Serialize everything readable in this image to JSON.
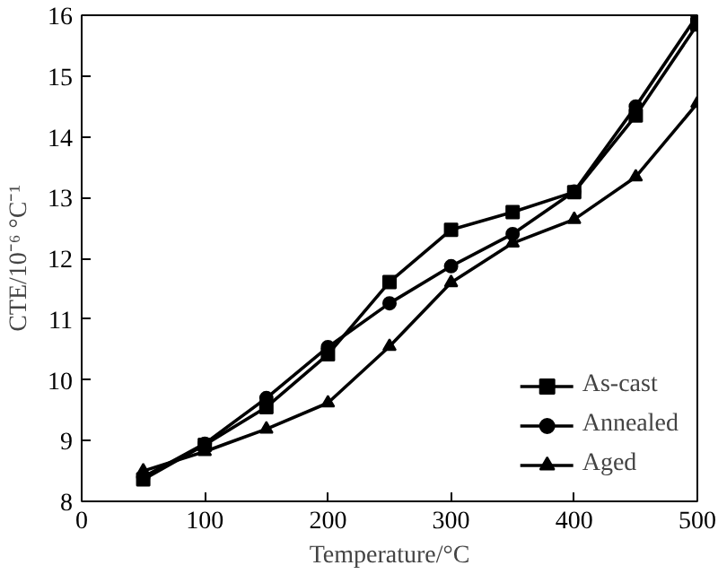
{
  "chart_data": {
    "type": "line",
    "xlabel": "Temperature/°C",
    "ylabel": "CTE/10⁻⁶ °C⁻¹",
    "x": [
      50,
      100,
      150,
      200,
      250,
      300,
      350,
      400,
      450,
      500
    ],
    "xlim": [
      0,
      500
    ],
    "xticks": [
      0,
      100,
      200,
      300,
      400,
      500
    ],
    "ylim": [
      8,
      16
    ],
    "yticks": [
      8,
      9,
      10,
      11,
      12,
      13,
      14,
      15,
      16
    ],
    "grid": false,
    "legend": "bottom right",
    "line_style": "solid",
    "series": [
      {
        "name": "As-cast",
        "color": "#000000",
        "marker": "square",
        "values": [
          8.36,
          8.93,
          9.55,
          10.42,
          11.61,
          12.47,
          12.76,
          13.09,
          14.35,
          15.85
        ]
      },
      {
        "name": "Annealed",
        "color": "#000000",
        "marker": "circle",
        "values": [
          8.4,
          8.95,
          9.7,
          10.54,
          11.26,
          11.87,
          12.4,
          13.1,
          14.5,
          16.0
        ]
      },
      {
        "name": "Aged",
        "color": "#000000",
        "marker": "triangle",
        "values": [
          8.5,
          8.82,
          9.19,
          9.62,
          10.55,
          11.6,
          12.25,
          12.64,
          13.34,
          14.55
        ]
      }
    ]
  }
}
